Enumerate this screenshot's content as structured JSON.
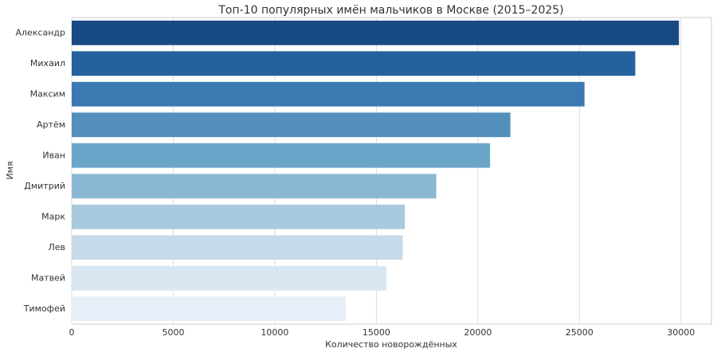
{
  "chart_data": {
    "type": "barh",
    "title": "Топ-10 популярных имён мальчиков в Москве (2015–2025)",
    "xlabel": "Количество новорождённых",
    "ylabel": "Имя",
    "categories": [
      "Александр",
      "Михаил",
      "Максим",
      "Артём",
      "Иван",
      "Дмитрий",
      "Марк",
      "Лев",
      "Матвей",
      "Тимофей"
    ],
    "values": [
      29900,
      27750,
      25250,
      21600,
      20600,
      17950,
      16400,
      16300,
      15500,
      13500
    ],
    "colors": [
      "#184a83",
      "#23619f",
      "#3a79b1",
      "#528fbb",
      "#6aa5c9",
      "#8ab8d3",
      "#a8c9de",
      "#c6daea",
      "#d8e6f2",
      "#e6eff8"
    ],
    "xlim": [
      0,
      31500
    ],
    "xticks": [
      0,
      5000,
      10000,
      15000,
      20000,
      25000,
      30000
    ],
    "grid": true
  }
}
